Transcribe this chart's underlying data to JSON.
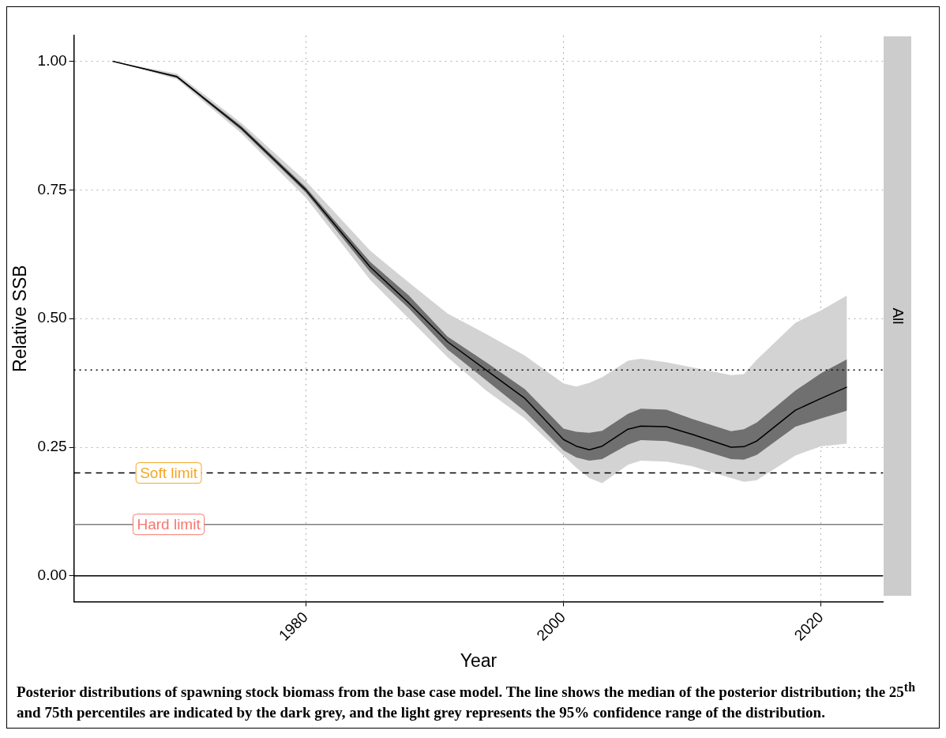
{
  "chart_data": {
    "type": "line",
    "xlabel": "Year",
    "ylabel": "Relative SSB",
    "x": [
      1965,
      1970,
      1975,
      1980,
      1985,
      1988,
      1991,
      1994,
      1997,
      2000,
      2001,
      2002,
      2003,
      2005,
      2006,
      2008,
      2010,
      2013,
      2014,
      2015,
      2018,
      2020,
      2022
    ],
    "series": [
      {
        "type": "area",
        "color": "#d3d3d3",
        "values": [
          null,
          null,
          null,
          null,
          null,
          null,
          null,
          null,
          null,
          null,
          null,
          null,
          null,
          null,
          null,
          null,
          null,
          null,
          null,
          null,
          null,
          null,
          null
        ],
        "lower": [
          1.0,
          0.965,
          0.86,
          0.735,
          0.575,
          0.5,
          0.425,
          0.36,
          0.306,
          0.234,
          0.21,
          0.19,
          0.18,
          0.216,
          0.224,
          0.222,
          0.213,
          0.19,
          0.183,
          0.186,
          0.234,
          0.252,
          0.257
        ],
        "upper": [
          1.0,
          0.976,
          0.88,
          0.767,
          0.632,
          0.57,
          0.51,
          0.47,
          0.428,
          0.374,
          0.368,
          0.375,
          0.386,
          0.418,
          0.422,
          0.415,
          0.405,
          0.39,
          0.392,
          0.42,
          0.492,
          0.516,
          0.545
        ]
      },
      {
        "type": "area",
        "color": "#707070",
        "values": [
          null,
          null,
          null,
          null,
          null,
          null,
          null,
          null,
          null,
          null,
          null,
          null,
          null,
          null,
          null,
          null,
          null,
          null,
          null,
          null,
          null,
          null,
          null
        ],
        "lower": [
          1.0,
          0.968,
          0.866,
          0.745,
          0.59,
          0.52,
          0.44,
          0.38,
          0.32,
          0.244,
          0.23,
          0.224,
          0.227,
          0.255,
          0.264,
          0.262,
          0.25,
          0.227,
          0.226,
          0.235,
          0.29,
          0.306,
          0.321
        ],
        "upper": [
          1.0,
          0.972,
          0.874,
          0.755,
          0.61,
          0.545,
          0.465,
          0.415,
          0.363,
          0.286,
          0.28,
          0.278,
          0.282,
          0.315,
          0.325,
          0.323,
          0.305,
          0.281,
          0.285,
          0.298,
          0.36,
          0.394,
          0.421
        ]
      },
      {
        "color": "#000000",
        "values": [
          1.0,
          0.97,
          0.87,
          0.75,
          0.6,
          0.53,
          0.455,
          0.4,
          0.345,
          0.265,
          0.252,
          0.245,
          0.252,
          0.285,
          0.291,
          0.29,
          0.275,
          0.25,
          0.251,
          0.262,
          0.322,
          0.345,
          0.367
        ]
      }
    ],
    "xlim": [
      1962,
      2024.8
    ],
    "xticks": [
      1980,
      2000,
      2020
    ],
    "ylim": [
      -0.05,
      1.05
    ],
    "yticks": [
      {
        "value": 0,
        "label": "0.00"
      },
      {
        "value": 0.25,
        "label": "0.25"
      },
      {
        "value": 0.5,
        "label": "0.50"
      },
      {
        "value": 0.75,
        "label": "0.75"
      },
      {
        "value": 1,
        "label": "1.00"
      }
    ],
    "grid": true,
    "legend": false,
    "marker": "none",
    "ref_lines": [
      {
        "axis": "y",
        "value": 0,
        "color": "#000000",
        "line_style": "solid"
      },
      {
        "axis": "y",
        "value": 0.1,
        "color": "#7f7f7f",
        "line_style": "solid",
        "label": "Hard limit"
      },
      {
        "axis": "y",
        "value": 0.2,
        "color": "#000000",
        "line_style": "dashed",
        "label": "Soft limit"
      },
      {
        "axis": "y",
        "value": 0.4,
        "color": "#000000",
        "line_style": "dotted"
      }
    ],
    "annotations": [
      "All",
      "Posterior distributions of spawning stock biomass from the base case model. The line shows the median of the posterior distribution; the 25$^{th}$ and 75th percentiles are indicated by the dark grey, and the light grey represents the 95% confidence range of the distribution."
    ]
  }
}
